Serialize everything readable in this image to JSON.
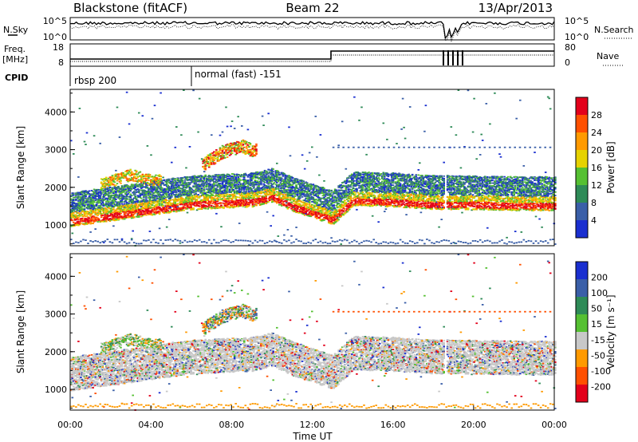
{
  "header": {
    "station": "Blackstone (fitACF)",
    "beam": "Beam 22",
    "date": "13/Apr/2013"
  },
  "status": {
    "nsky_label": "N.Sky",
    "nsky_ticks": [
      "10^5",
      "10^0"
    ],
    "nsearch_label": "N.Search",
    "nsearch_ticks": [
      "10^5",
      "10^0"
    ],
    "freq_label": "Freq.",
    "freq_unit": "[MHz]",
    "freq_ticks": [
      "18",
      "8"
    ],
    "nave_label": "Nave",
    "nave_ticks": [
      "80",
      "0"
    ],
    "cpid_label": "CPID",
    "cpid_segments": [
      {
        "name": "rbsp 200",
        "start_hour": 0
      },
      {
        "name": "normal (fast) -151",
        "start_hour": 6.0
      }
    ]
  },
  "chart_data": [
    {
      "type": "heatmap",
      "panel": "power",
      "ylabel": "Slant Range [km]",
      "xlabel": "",
      "xlim": [
        0,
        24
      ],
      "ylim": [
        450,
        4600
      ],
      "yticks": [
        1000,
        2000,
        3000,
        4000
      ],
      "colorbar": {
        "label": "Power [dB]",
        "ticks": [
          "28",
          "24",
          "20",
          "16",
          "12",
          "8",
          "4"
        ],
        "colors": [
          "#e3001b",
          "#ff5000",
          "#ff9a00",
          "#e6d200",
          "#55c032",
          "#2e8b57",
          "#3a5fa8",
          "#1a2fd0"
        ]
      },
      "bands": [
        {
          "x": [
            0.0,
            3.0,
            6.0,
            9.0,
            10.0,
            11.0,
            13.0,
            14.0,
            16.0,
            18.0,
            20.0,
            22.0,
            24.0
          ],
          "range_km": [
            1100,
            1320,
            1550,
            1620,
            1750,
            1500,
            1150,
            1650,
            1620,
            1550,
            1550,
            1520,
            1520
          ]
        },
        {
          "x": [
            1.5,
            3.0,
            4.0
          ],
          "range_km": [
            2100,
            2350,
            2200
          ]
        },
        {
          "x": [
            6.5,
            7.5,
            8.5,
            9.0
          ],
          "range_km": [
            2600,
            2950,
            3100,
            3000
          ]
        }
      ]
    },
    {
      "type": "heatmap",
      "panel": "velocity",
      "ylabel": "Slant Range [km]",
      "xlabel": "Time UT",
      "xlim": [
        0,
        24
      ],
      "ylim": [
        450,
        4600
      ],
      "yticks": [
        1000,
        2000,
        3000,
        4000
      ],
      "xticks": [
        "00:00",
        "04:00",
        "08:00",
        "12:00",
        "16:00",
        "20:00",
        "00:00"
      ],
      "colorbar": {
        "label": "Velocity [m s⁻¹]",
        "ticks": [
          "200",
          "100",
          "50",
          "15",
          "-15",
          "-50",
          "-100",
          "-200"
        ],
        "colors": [
          "#1a2fd0",
          "#3a5fa8",
          "#2e8b57",
          "#55c032",
          "#c8c8c8",
          "#ff9a00",
          "#ff5000",
          "#e3001b"
        ]
      }
    }
  ]
}
